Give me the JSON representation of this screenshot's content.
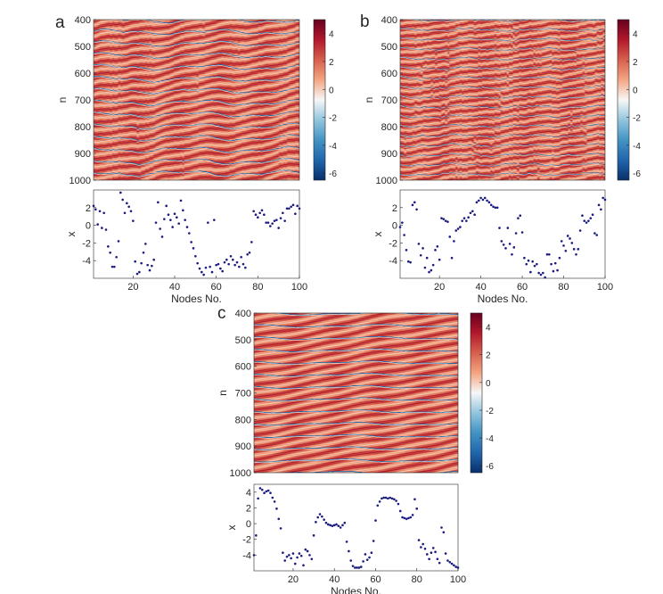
{
  "figure": {
    "panels": [
      "a",
      "b",
      "c"
    ]
  },
  "chart_data": [
    {
      "panel": "a",
      "type": "heatmap",
      "ylabel": "n",
      "ylim": [
        400,
        1000
      ],
      "yticks": [
        "400",
        "500",
        "600",
        "700",
        "800",
        "900",
        "1000"
      ],
      "xlim": [
        1,
        100
      ],
      "colorbar": {
        "min": -6.5,
        "max": 5,
        "ticks": [
          "4",
          "2",
          "0",
          "-2",
          "-4",
          "-6"
        ]
      },
      "colormap": [
        "#08306b",
        "#2166ac",
        "#4393c3",
        "#92c5de",
        "#f7f7f7",
        "#f4a582",
        "#d6604d",
        "#b2182b",
        "#67001f"
      ],
      "period_rows": 44,
      "wave": {
        "amp1": 7,
        "freq1": 2,
        "amp2": 4,
        "freq2": 5,
        "phase": 0.3,
        "noise": 3,
        "defects": 0.04,
        "defect_size": 8
      }
    },
    {
      "panel": "a",
      "type": "scatter",
      "ylabel": "x",
      "xlabel": "Nodes No.",
      "xlim": [
        1,
        100
      ],
      "ylim": [
        -6,
        4
      ],
      "xticks": [
        "20",
        "40",
        "60",
        "80",
        "100"
      ],
      "yticks": [
        "2",
        "0",
        "-2",
        "-4"
      ],
      "marker_color": "#1a1a80",
      "x": [
        1,
        2,
        3,
        4,
        5,
        6,
        7,
        8,
        9,
        10,
        11,
        12,
        13,
        14,
        15,
        16,
        17,
        18,
        19,
        20,
        21,
        22,
        23,
        24,
        25,
        26,
        27,
        28,
        29,
        30,
        31,
        32,
        33,
        34,
        35,
        36,
        37,
        38,
        39,
        40,
        41,
        42,
        43,
        44,
        45,
        46,
        47,
        48,
        49,
        50,
        51,
        52,
        53,
        54,
        55,
        56,
        57,
        58,
        59,
        60,
        61,
        62,
        63,
        64,
        65,
        66,
        67,
        68,
        69,
        70,
        71,
        72,
        73,
        74,
        75,
        76,
        77,
        78,
        79,
        80,
        81,
        82,
        83,
        84,
        85,
        86,
        87,
        88,
        89,
        90,
        91,
        92,
        93,
        94,
        95,
        96,
        97,
        98,
        99,
        100
      ],
      "y": [
        2.2,
        1.8,
        0.1,
        1.6,
        -0.3,
        1.4,
        -0.5,
        -2.4,
        -3.1,
        -4.7,
        -4.7,
        -3.6,
        -1.8,
        3.7,
        2.9,
        1.4,
        2.5,
        2.1,
        1.6,
        0.5,
        -4.1,
        -5.5,
        -5.3,
        -4.3,
        -3.1,
        -2.1,
        -4.5,
        -5.1,
        -4.6,
        -3.9,
        0.3,
        2.6,
        -0.4,
        -1.3,
        0.7,
        2.2,
        1.2,
        0.6,
        -0.2,
        1.3,
        0.9,
        0.2,
        2.8,
        1.7,
        0.6,
        -0.2,
        -0.9,
        -1.9,
        -2.6,
        -3.5,
        -4.3,
        -4.9,
        -5.3,
        -5.6,
        -4.8,
        0.3,
        -4.7,
        -5.3,
        0.6,
        -4.5,
        -4.4,
        -4.9,
        -5.2,
        -4.2,
        -3.9,
        -4.4,
        -3.5,
        -3.9,
        -4.5,
        -4.2,
        -4.7,
        -3.6,
        -4.4,
        -4.8,
        -3.3,
        -3.1,
        -1.9,
        1.6,
        1.2,
        0.9,
        1.4,
        1.7,
        1.2,
        0.3,
        0.3,
        -0.1,
        0.2,
        0.5,
        0.6,
        -0.3,
        0.8,
        1.4,
        0.5,
        1.9,
        1.9,
        2.1,
        2.3,
        1.3,
        2.2,
        1.9
      ]
    },
    {
      "panel": "b",
      "type": "heatmap",
      "ylabel": "n",
      "ylim": [
        400,
        1000
      ],
      "yticks": [
        "400",
        "500",
        "600",
        "700",
        "800",
        "900",
        "1000"
      ],
      "xlim": [
        1,
        100
      ],
      "colorbar": {
        "min": -6.5,
        "max": 5,
        "ticks": [
          "4",
          "2",
          "0",
          "-2",
          "-4",
          "-6"
        ]
      },
      "colormap": [
        "#08306b",
        "#2166ac",
        "#4393c3",
        "#92c5de",
        "#f7f7f7",
        "#f4a582",
        "#d6604d",
        "#b2182b",
        "#67001f"
      ],
      "period_rows": 36,
      "wave": {
        "amp1": 3,
        "freq1": 3,
        "amp2": 2,
        "freq2": 7,
        "phase": 1.1,
        "noise": 4,
        "defects": 0.15,
        "defect_size": 14
      }
    },
    {
      "panel": "b",
      "type": "scatter",
      "ylabel": "x",
      "xlabel": "Nodes No.",
      "xlim": [
        1,
        100
      ],
      "ylim": [
        -6,
        4
      ],
      "xticks": [
        "20",
        "40",
        "60",
        "80",
        "100"
      ],
      "yticks": [
        "2",
        "0",
        "-2",
        "-4"
      ],
      "marker_color": "#1a1a80",
      "x": [
        1,
        2,
        3,
        4,
        5,
        6,
        7,
        8,
        9,
        10,
        11,
        12,
        13,
        14,
        15,
        16,
        17,
        18,
        19,
        20,
        21,
        22,
        23,
        24,
        25,
        26,
        27,
        28,
        29,
        30,
        31,
        32,
        33,
        34,
        35,
        36,
        37,
        38,
        39,
        40,
        41,
        42,
        43,
        44,
        45,
        46,
        47,
        48,
        49,
        50,
        51,
        52,
        53,
        54,
        55,
        56,
        57,
        58,
        59,
        60,
        61,
        62,
        63,
        64,
        65,
        66,
        67,
        68,
        69,
        70,
        71,
        72,
        73,
        74,
        75,
        76,
        77,
        78,
        79,
        80,
        81,
        82,
        83,
        84,
        85,
        86,
        87,
        88,
        89,
        90,
        91,
        92,
        93,
        94,
        95,
        96,
        97,
        98,
        99,
        100
      ],
      "y": [
        -0.2,
        0.3,
        -1.1,
        -2.8,
        -4.1,
        -4.2,
        2.3,
        2.6,
        1.8,
        -2.1,
        -3.4,
        -2.6,
        -4.8,
        -3.7,
        -5.3,
        -5.1,
        -4.5,
        -2.8,
        -2.4,
        -3.9,
        0.8,
        0.7,
        0.5,
        0.4,
        -1.3,
        -3.7,
        -1.8,
        -0.6,
        -0.4,
        -0.2,
        0.5,
        0.8,
        0.5,
        0.9,
        1.4,
        1.6,
        1.2,
        2.6,
        2.8,
        3.1,
        2.9,
        3.1,
        2.8,
        2.6,
        2.3,
        2.1,
        2.0,
        2.0,
        -0.3,
        -1.8,
        -2.2,
        -2.6,
        -0.3,
        -2.1,
        -3.3,
        -2.5,
        -0.9,
        0.8,
        1.1,
        -0.8,
        -3.7,
        -4.4,
        -4.0,
        -5.3,
        -4.1,
        -4.6,
        -4.4,
        -5.4,
        -5.6,
        -5.4,
        -5.9,
        -3.3,
        -3.3,
        -4.4,
        -5.2,
        -4.3,
        -5.1,
        -3.7,
        -1.8,
        -2.3,
        -2.9,
        -1.2,
        -1.5,
        -2.0,
        -2.7,
        -3.3,
        -2.7,
        -0.6,
        1.1,
        0.5,
        0.3,
        0.5,
        0.8,
        1.2,
        -0.9,
        -1.1,
        2.3,
        1.8,
        3.1,
        2.9
      ]
    },
    {
      "panel": "c",
      "type": "heatmap",
      "ylabel": "n",
      "ylim": [
        400,
        1000
      ],
      "yticks": [
        "400",
        "500",
        "600",
        "700",
        "800",
        "900",
        "1000"
      ],
      "xlim": [
        1,
        100
      ],
      "colorbar": {
        "min": -6.5,
        "max": 5,
        "ticks": [
          "4",
          "2",
          "0",
          "-2",
          "-4",
          "-6"
        ]
      },
      "colormap": [
        "#08306b",
        "#2166ac",
        "#4393c3",
        "#92c5de",
        "#f7f7f7",
        "#f4a582",
        "#d6604d",
        "#b2182b",
        "#67001f"
      ],
      "period_rows": 46,
      "wave": {
        "amp1": 4,
        "freq1": 1.5,
        "amp2": 2,
        "freq2": 3.5,
        "phase": 2.0,
        "noise": 1,
        "defects": 0.0,
        "defect_size": 0
      }
    },
    {
      "panel": "c",
      "type": "scatter",
      "ylabel": "x",
      "xlabel": "Nodes No.",
      "xlim": [
        1,
        100
      ],
      "ylim": [
        -6,
        5
      ],
      "xticks": [
        "20",
        "40",
        "60",
        "80",
        "100"
      ],
      "yticks": [
        "4",
        "2",
        "0",
        "-2",
        "-4"
      ],
      "marker_color": "#1a1a80",
      "x": [
        1,
        2,
        3,
        4,
        5,
        6,
        7,
        8,
        9,
        10,
        11,
        12,
        13,
        14,
        15,
        16,
        17,
        18,
        19,
        20,
        21,
        22,
        23,
        24,
        25,
        26,
        27,
        28,
        29,
        30,
        31,
        32,
        33,
        34,
        35,
        36,
        37,
        38,
        39,
        40,
        41,
        42,
        43,
        44,
        45,
        46,
        47,
        48,
        49,
        50,
        51,
        52,
        53,
        54,
        55,
        56,
        57,
        58,
        59,
        60,
        61,
        62,
        63,
        64,
        65,
        66,
        67,
        68,
        69,
        70,
        71,
        72,
        73,
        74,
        75,
        76,
        77,
        78,
        79,
        80,
        81,
        82,
        83,
        84,
        85,
        86,
        87,
        88,
        89,
        90,
        91,
        92,
        93,
        94,
        95,
        96,
        97,
        98,
        99,
        100
      ],
      "y": [
        -4.0,
        -1.5,
        3.2,
        4.5,
        4.3,
        3.9,
        4.1,
        4.2,
        3.9,
        3.3,
        2.8,
        1.9,
        0.6,
        -0.6,
        -3.7,
        -4.7,
        -4.2,
        -4.0,
        -4.4,
        -3.8,
        -5.1,
        -4.3,
        -3.8,
        -4.1,
        -5.3,
        -3.3,
        -3.5,
        -4.0,
        -4.5,
        -1.5,
        0.2,
        0.8,
        1.2,
        0.9,
        0.5,
        0.1,
        -0.1,
        -0.2,
        -0.3,
        -0.2,
        -0.1,
        -0.3,
        -0.5,
        -0.2,
        0.1,
        -2.3,
        -3.5,
        -4.7,
        -5.4,
        -5.6,
        -5.6,
        -5.6,
        -5.5,
        -4.8,
        -3.9,
        -4.6,
        -4.3,
        -3.7,
        -2.2,
        0.4,
        2.3,
        2.8,
        3.2,
        3.3,
        3.3,
        3.2,
        3.3,
        3.2,
        3.1,
        2.9,
        2.5,
        1.6,
        0.8,
        0.7,
        0.6,
        0.7,
        0.8,
        1.1,
        3.1,
        1.9,
        -2.1,
        -3.0,
        -2.6,
        -3.2,
        -3.9,
        -4.5,
        -3.7,
        -3.1,
        -3.6,
        -4.5,
        -5.0,
        -0.5,
        -1.1,
        -3.8,
        -4.7,
        -4.9,
        -5.1,
        -5.3,
        -5.5,
        -5.6
      ]
    }
  ]
}
